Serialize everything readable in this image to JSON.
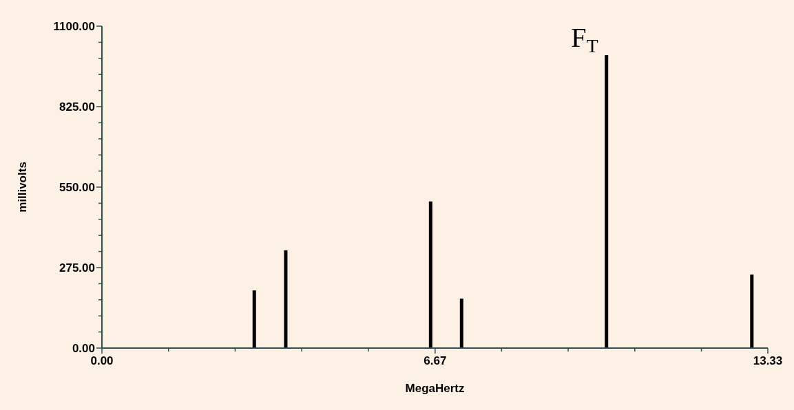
{
  "chart_data": {
    "type": "bar",
    "xlabel": "MegaHertz",
    "ylabel": "millivolts",
    "x": [
      3.05,
      3.68,
      6.58,
      7.2,
      10.1,
      13.01
    ],
    "values": [
      197,
      334,
      501,
      169,
      1001,
      251
    ],
    "color": "#000000",
    "xlim": [
      0,
      13.33
    ],
    "ylim": [
      0,
      1100
    ],
    "xticks": [
      {
        "value": 0,
        "label": "0.00"
      },
      {
        "value": 1.333,
        "label": null
      },
      {
        "value": 2.667,
        "label": null
      },
      {
        "value": 4,
        "label": null
      },
      {
        "value": 5.333,
        "label": null
      },
      {
        "value": 6.67,
        "label": "6.67"
      },
      {
        "value": 8,
        "label": null
      },
      {
        "value": 9.333,
        "label": null
      },
      {
        "value": 10.667,
        "label": null
      },
      {
        "value": 12,
        "label": null
      },
      {
        "value": 13.33,
        "label": "13.33"
      }
    ],
    "yticks": [
      {
        "value": 0,
        "label": "0.00"
      },
      {
        "value": 55,
        "label": null
      },
      {
        "value": 110,
        "label": null
      },
      {
        "value": 165,
        "label": null
      },
      {
        "value": 220,
        "label": null
      },
      {
        "value": 275,
        "label": "275.00"
      },
      {
        "value": 330,
        "label": null
      },
      {
        "value": 385,
        "label": null
      },
      {
        "value": 440,
        "label": null
      },
      {
        "value": 495,
        "label": null
      },
      {
        "value": 550,
        "label": "550.00"
      },
      {
        "value": 605,
        "label": null
      },
      {
        "value": 660,
        "label": null
      },
      {
        "value": 715,
        "label": null
      },
      {
        "value": 770,
        "label": null
      },
      {
        "value": 825,
        "label": "825.00"
      },
      {
        "value": 880,
        "label": null
      },
      {
        "value": 935,
        "label": null
      },
      {
        "value": 990,
        "label": null
      },
      {
        "value": 1045,
        "label": null
      },
      {
        "value": 1100,
        "label": "1100.00"
      }
    ],
    "annotations": [
      {
        "text": "F$_{T}$",
        "x": 10.1,
        "y": 1001
      }
    ]
  }
}
